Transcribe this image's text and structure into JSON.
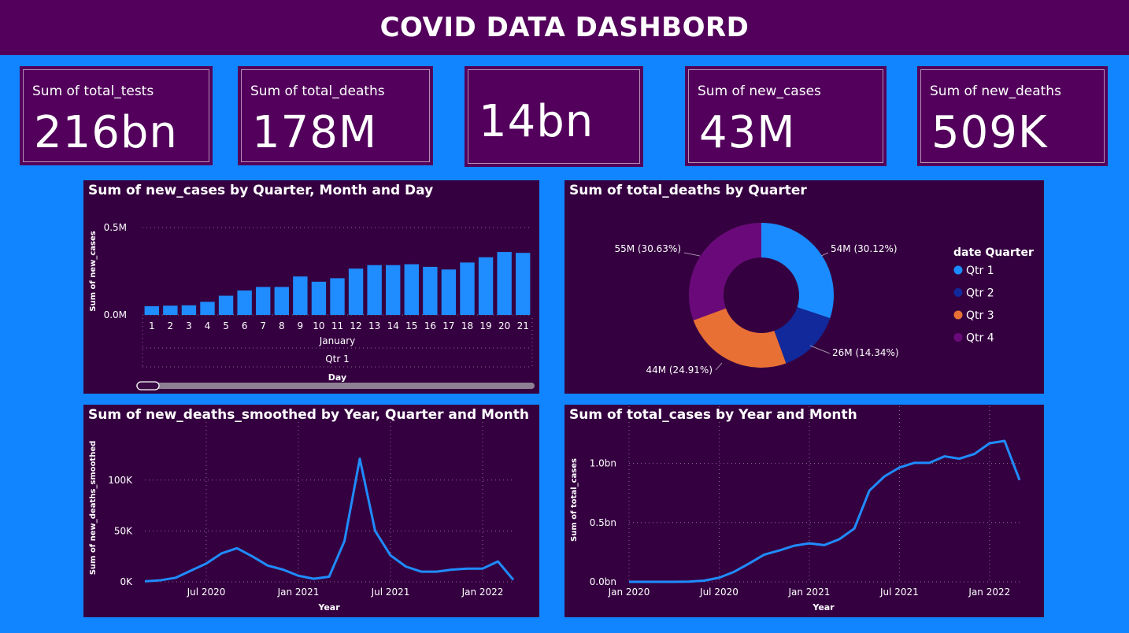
{
  "header": {
    "title": "COVID DATA  DASHBORD"
  },
  "cards": [
    {
      "label": "Sum of total_tests",
      "value": "216bn"
    },
    {
      "label": "Sum of total_deaths",
      "value": "178M"
    },
    {
      "label": "",
      "value": "14bn"
    },
    {
      "label": "Sum of new_cases",
      "value": "43M"
    },
    {
      "label": "Sum of new_deaths",
      "value": "509K"
    }
  ],
  "colors": {
    "background": "#1185ff",
    "header": "#52005b",
    "panel": "#350040",
    "bar": "#1f8cff",
    "line": "#1f8cff",
    "qtr1": "#1a8cff",
    "qtr2": "#12299b",
    "qtr3": "#e87035",
    "qtr4": "#6a0a7a"
  },
  "chart_data": [
    {
      "type": "bar",
      "title": "Sum of new_cases by Quarter, Month and Day",
      "xlabel": "Day",
      "ylabel": "Sum of new_cases",
      "categories": [
        "1",
        "2",
        "3",
        "4",
        "5",
        "6",
        "7",
        "8",
        "9",
        "10",
        "11",
        "12",
        "13",
        "14",
        "15",
        "16",
        "17",
        "18",
        "19",
        "20",
        "21"
      ],
      "values": [
        0.05,
        0.053,
        0.055,
        0.075,
        0.11,
        0.14,
        0.16,
        0.16,
        0.22,
        0.19,
        0.21,
        0.265,
        0.285,
        0.285,
        0.29,
        0.275,
        0.26,
        0.3,
        0.33,
        0.36,
        0.355
      ],
      "group_labels": [
        "January",
        "Qtr 1"
      ],
      "yticks": [
        {
          "v": 0,
          "label": "0.0M"
        },
        {
          "v": 0.5,
          "label": "0.5M"
        }
      ],
      "ylim": [
        0,
        0.5
      ],
      "grid": true
    },
    {
      "type": "pie",
      "title": "Sum of total_deaths by Quarter",
      "legend_title": "date Quarter",
      "legend_position": "right",
      "slices": [
        {
          "name": "Qtr 1",
          "value": 54,
          "label": "54M (30.12%)",
          "pct": 30.12
        },
        {
          "name": "Qtr 2",
          "value": 26,
          "label": "26M (14.34%)",
          "pct": 14.34
        },
        {
          "name": "Qtr 3",
          "value": 44,
          "label": "44M (24.91%)",
          "pct": 24.91
        },
        {
          "name": "Qtr 4",
          "value": 55,
          "label": "55M (30.63%)",
          "pct": 30.63
        }
      ]
    },
    {
      "type": "line",
      "title": "Sum of new_deaths_smoothed by Year, Quarter and Month",
      "xlabel": "Year",
      "ylabel": "Sum of new_deaths_smoothed",
      "x_start": "2020-03",
      "xticks": [
        {
          "i": 4,
          "label": "Jul 2020"
        },
        {
          "i": 10,
          "label": "Jan 2021"
        },
        {
          "i": 16,
          "label": "Jul 2021"
        },
        {
          "i": 22,
          "label": "Jan 2022"
        }
      ],
      "yticks": [
        {
          "v": 0,
          "label": "0K"
        },
        {
          "v": 50000,
          "label": "50K"
        },
        {
          "v": 100000,
          "label": "100K"
        }
      ],
      "ylim": [
        0,
        130000
      ],
      "values": [
        500,
        1500,
        4000,
        11000,
        18000,
        28000,
        33000,
        25000,
        16000,
        12000,
        6000,
        3000,
        5000,
        40000,
        121000,
        50000,
        26000,
        15000,
        10000,
        10000,
        12000,
        13000,
        13000,
        20000,
        2000
      ],
      "grid": true
    },
    {
      "type": "line",
      "title": "Sum of total_cases by Year and Month",
      "xlabel": "Year",
      "ylabel": "Sum of total_cases",
      "x_start": "2020-01",
      "xticks": [
        {
          "i": 0,
          "label": "Jan 2020"
        },
        {
          "i": 6,
          "label": "Jul 2020"
        },
        {
          "i": 12,
          "label": "Jan 2021"
        },
        {
          "i": 18,
          "label": "Jul 2021"
        },
        {
          "i": 24,
          "label": "Jan 2022"
        }
      ],
      "yticks": [
        {
          "v": 0,
          "label": "0.0bn"
        },
        {
          "v": 0.5,
          "label": "0.5bn"
        },
        {
          "v": 1.0,
          "label": "1.0bn"
        }
      ],
      "ylim": [
        0,
        1.25
      ],
      "values": [
        0,
        0,
        0,
        0,
        0.002,
        0.01,
        0.035,
        0.085,
        0.155,
        0.23,
        0.265,
        0.305,
        0.325,
        0.31,
        0.36,
        0.45,
        0.77,
        0.89,
        0.965,
        1.005,
        1.005,
        1.06,
        1.04,
        1.08,
        1.17,
        1.19,
        0.86
      ],
      "grid": true
    }
  ]
}
